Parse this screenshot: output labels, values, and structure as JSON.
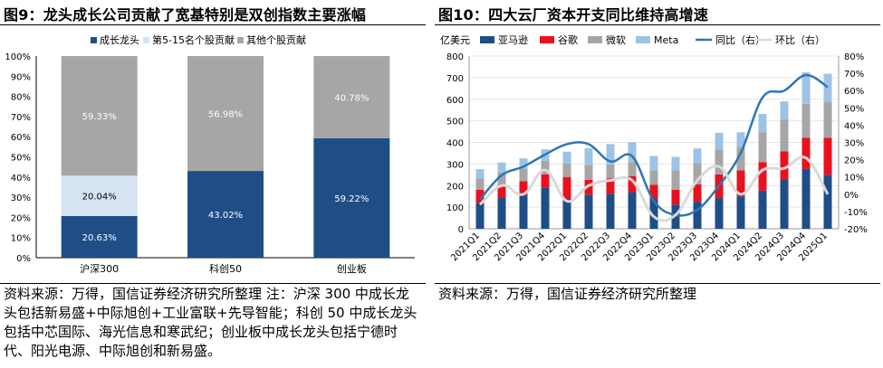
{
  "left": {
    "title": "图9：龙头成长公司贡献了宽基特别是双创指数主要涨幅",
    "source": "资料来源：万得，国信证券经济研究所整理 注：沪深 300 中成长龙头包括新易盛+中际旭创+工业富联+先导智能；科创 50 中成长龙头包括中芯国际、海光信息和寒武纪；创业板中成长龙头包括宁德时代、阳光电源、中际旭创和新易盛。"
  },
  "right": {
    "title": "图10：四大云厂资本开支同比维持高增速",
    "source": "资料来源：万得，国信证券经济研究所整理"
  },
  "chart_data": [
    {
      "type": "stacked_bar",
      "title": "龙头成长公司贡献了宽基特别是双创指数主要涨幅",
      "categories": [
        "沪深300",
        "科创50",
        "创业板"
      ],
      "series": [
        {
          "name": "成长龙头",
          "color": "#1f4e87",
          "values": [
            20.63,
            43.02,
            59.22
          ],
          "labels": [
            "20.63%",
            "43.02%",
            "59.22%"
          ]
        },
        {
          "name": "第5-15名个股贡献",
          "color": "#d6e3f2",
          "values": [
            20.04,
            0,
            0
          ],
          "labels": [
            "20.04%",
            "",
            ""
          ]
        },
        {
          "name": "其他个股贡献",
          "color": "#a6a6a6",
          "values": [
            59.33,
            56.98,
            40.78
          ],
          "labels": [
            "59.33%",
            "56.98%",
            "40.78%"
          ]
        }
      ],
      "ylim": [
        0,
        100
      ],
      "yticks": [
        "0%",
        "10%",
        "20%",
        "30%",
        "40%",
        "50%",
        "60%",
        "70%",
        "80%",
        "90%",
        "100%"
      ],
      "legend": "top"
    },
    {
      "type": "stacked_bar_line",
      "title": "四大云厂资本开支同比维持高增速",
      "left_axis_unit": "亿美元",
      "categories": [
        "2021Q1",
        "2021Q2",
        "2021Q3",
        "2021Q4",
        "2022Q1",
        "2022Q2",
        "2022Q3",
        "2022Q4",
        "2023Q1",
        "2023Q2",
        "2023Q3",
        "2023Q4",
        "2024Q1",
        "2024Q2",
        "2024Q3",
        "2024Q4",
        "2025Q1"
      ],
      "series": [
        {
          "name": "亚马逊",
          "color": "#1f4e87",
          "axis": "left",
          "values": [
            120,
            145,
            155,
            190,
            140,
            158,
            162,
            170,
            140,
            112,
            125,
            142,
            150,
            177,
            228,
            278,
            250
          ]
        },
        {
          "name": "谷歌",
          "color": "#e8121e",
          "axis": "left",
          "values": [
            60,
            55,
            65,
            62,
            100,
            69,
            72,
            73,
            64,
            69,
            81,
            110,
            120,
            132,
            131,
            143,
            172
          ]
        },
        {
          "name": "微软",
          "color": "#a6a6a6",
          "axis": "left",
          "values": [
            52,
            60,
            58,
            62,
            62,
            69,
            64,
            66,
            64,
            89,
            99,
            114,
            110,
            138,
            149,
            158,
            167
          ]
        },
        {
          "name": "Meta",
          "color": "#9dc3e6",
          "axis": "left",
          "values": [
            44,
            47,
            48,
            54,
            55,
            77,
            94,
            92,
            69,
            63,
            67,
            79,
            67,
            85,
            82,
            146,
            129
          ]
        },
        {
          "name": "同比（右）",
          "color": "#2e75b6",
          "axis": "right",
          "values": [
            -3,
            11,
            16,
            23,
            29,
            29,
            19,
            22,
            -4,
            -12,
            -9,
            5,
            24,
            56,
            60,
            69,
            62
          ]
        },
        {
          "name": "环比（右）",
          "color": "#d9d9d9",
          "axis": "right",
          "values": [
            -6,
            5,
            0,
            14,
            -4,
            5,
            8,
            8,
            -13,
            -12,
            8,
            16,
            0,
            14,
            15,
            21,
            0
          ]
        }
      ],
      "ylim_left": [
        0,
        800
      ],
      "ylim_right": [
        -20,
        80
      ],
      "yticks_left": [
        "0",
        "100",
        "200",
        "300",
        "400",
        "500",
        "600",
        "700",
        "800"
      ],
      "yticks_right": [
        "-20%",
        "-10%",
        "0%",
        "10%",
        "20%",
        "30%",
        "40%",
        "50%",
        "60%",
        "70%",
        "80%"
      ],
      "legend": "top"
    }
  ]
}
